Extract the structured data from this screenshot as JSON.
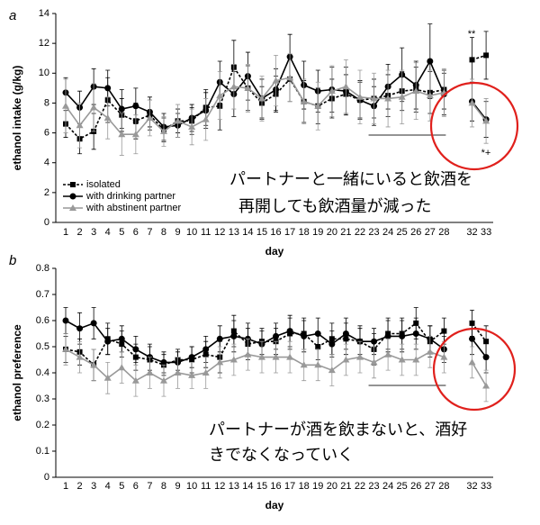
{
  "chart_data": [
    {
      "type": "line",
      "panel_label": "a",
      "ylabel": "ethanol intake (g/kg)",
      "xlabel": "day",
      "categories": [
        "1",
        "2",
        "3",
        "4",
        "5",
        "6",
        "7",
        "8",
        "9",
        "10",
        "11",
        "12",
        "13",
        "14",
        "15",
        "16",
        "17",
        "18",
        "19",
        "20",
        "21",
        "22",
        "23",
        "24",
        "25",
        "26",
        "27",
        "28",
        null,
        "32",
        "33"
      ],
      "ylim": [
        0,
        14
      ],
      "yticks": [
        0,
        2,
        4,
        6,
        8,
        10,
        12,
        14
      ],
      "legend": "lower left",
      "annotations": [
        "パートナーと一緒にいると飲酒を",
        "再開しても飲酒量が減った"
      ],
      "significance": [
        "**",
        "*+"
      ],
      "series": [
        {
          "name": "isolated",
          "color": "#000000",
          "line_style": "dashed",
          "marker": "square",
          "values": [
            6.6,
            5.6,
            6.1,
            8.2,
            7.2,
            6.8,
            7.2,
            6.2,
            6.8,
            6.8,
            7.7,
            7.8,
            10.4,
            9.0,
            8.0,
            8.6,
            9.6,
            8.1,
            7.8,
            8.3,
            8.6,
            8.2,
            8.3,
            8.5,
            8.8,
            8.9,
            8.7,
            8.9,
            null,
            10.9,
            11.2
          ],
          "errors": [
            0.9,
            1.0,
            1.2,
            1.5,
            1.1,
            1.2,
            1.0,
            0.8,
            0.8,
            0.9,
            1.2,
            1.6,
            1.8,
            1.5,
            1.1,
            1.2,
            1.5,
            1.4,
            1.2,
            1.3,
            1.3,
            1.2,
            1.3,
            1.4,
            1.3,
            1.5,
            1.4,
            1.3,
            null,
            1.5,
            1.6
          ]
        },
        {
          "name": "with drinking partner",
          "color": "#000000",
          "line_style": "solid",
          "marker": "circle",
          "values": [
            8.7,
            7.7,
            9.1,
            9.0,
            7.6,
            7.8,
            7.4,
            6.4,
            6.5,
            7.0,
            7.5,
            9.4,
            8.6,
            9.8,
            8.3,
            8.9,
            11.1,
            9.2,
            8.8,
            8.9,
            8.8,
            8.2,
            7.8,
            9.1,
            9.9,
            9.2,
            10.8,
            8.6,
            null,
            8.1,
            6.9
          ],
          "errors": [
            1.0,
            1.1,
            1.2,
            1.2,
            1.3,
            1.2,
            1.0,
            0.9,
            0.8,
            0.9,
            1.2,
            1.4,
            1.5,
            1.6,
            1.3,
            1.4,
            1.5,
            1.6,
            1.4,
            1.5,
            1.6,
            1.3,
            1.3,
            1.5,
            1.8,
            1.6,
            2.5,
            1.4,
            null,
            1.3,
            1.2
          ]
        },
        {
          "name": "with abstinent partner",
          "color": "#999999",
          "line_style": "solid",
          "marker": "triangle",
          "values": [
            7.8,
            6.5,
            7.7,
            7.0,
            5.9,
            5.9,
            7.0,
            6.1,
            6.8,
            6.4,
            6.9,
            8.5,
            9.1,
            9.0,
            8.3,
            9.5,
            9.7,
            8.1,
            7.8,
            8.8,
            9.1,
            8.4,
            8.3,
            8.3,
            8.4,
            8.8,
            8.5,
            8.7,
            null,
            8.0,
            6.8
          ],
          "errors": [
            1.8,
            1.5,
            1.6,
            1.4,
            1.4,
            1.3,
            1.2,
            1.0,
            1.1,
            1.2,
            1.4,
            1.6,
            1.5,
            1.6,
            1.5,
            1.7,
            1.6,
            1.5,
            1.6,
            1.7,
            1.8,
            1.8,
            1.7,
            1.9,
            1.8,
            1.9,
            1.7,
            1.6,
            null,
            1.6,
            1.5
          ]
        }
      ]
    },
    {
      "type": "line",
      "panel_label": "b",
      "ylabel": "ethanol preference",
      "xlabel": "day",
      "categories": [
        "1",
        "2",
        "3",
        "4",
        "5",
        "6",
        "7",
        "8",
        "9",
        "10",
        "11",
        "12",
        "13",
        "14",
        "15",
        "16",
        "17",
        "18",
        "19",
        "20",
        "21",
        "22",
        "23",
        "24",
        "25",
        "26",
        "27",
        "28",
        null,
        "32",
        "33"
      ],
      "ylim": [
        0,
        0.8
      ],
      "yticks": [
        0,
        0.1,
        0.2,
        0.3,
        0.4,
        0.5,
        0.6,
        0.7,
        0.8
      ],
      "annotations": [
        "パートナーが酒を飲まないと、酒好",
        "きでなくなっていく"
      ],
      "series": [
        {
          "color": "#000000",
          "line_style": "dashed",
          "marker": "square",
          "values": [
            0.49,
            0.48,
            0.43,
            0.53,
            0.51,
            0.46,
            0.45,
            0.43,
            0.45,
            0.45,
            0.47,
            0.46,
            0.56,
            0.51,
            0.52,
            0.52,
            0.55,
            0.55,
            0.5,
            0.53,
            0.53,
            0.52,
            0.49,
            0.55,
            0.55,
            0.59,
            0.52,
            0.56,
            null,
            0.59,
            0.52
          ],
          "errors": [
            0.05,
            0.05,
            0.06,
            0.06,
            0.05,
            0.05,
            0.05,
            0.04,
            0.04,
            0.05,
            0.05,
            0.06,
            0.06,
            0.06,
            0.05,
            0.05,
            0.06,
            0.06,
            0.05,
            0.06,
            0.06,
            0.05,
            0.06,
            0.06,
            0.06,
            0.06,
            0.06,
            0.05,
            null,
            0.05,
            0.06
          ]
        },
        {
          "color": "#000000",
          "line_style": "solid",
          "marker": "circle",
          "values": [
            0.6,
            0.57,
            0.59,
            0.52,
            0.53,
            0.49,
            0.46,
            0.44,
            0.44,
            0.46,
            0.49,
            0.53,
            0.54,
            0.53,
            0.51,
            0.54,
            0.56,
            0.54,
            0.55,
            0.51,
            0.55,
            0.52,
            0.52,
            0.54,
            0.54,
            0.55,
            0.53,
            0.49,
            null,
            0.53,
            0.46
          ],
          "errors": [
            0.05,
            0.06,
            0.06,
            0.05,
            0.05,
            0.05,
            0.05,
            0.04,
            0.04,
            0.04,
            0.05,
            0.05,
            0.06,
            0.06,
            0.05,
            0.05,
            0.06,
            0.06,
            0.06,
            0.05,
            0.06,
            0.06,
            0.05,
            0.06,
            0.06,
            0.06,
            0.05,
            0.05,
            null,
            0.06,
            0.06
          ]
        },
        {
          "color": "#999999",
          "line_style": "solid",
          "marker": "triangle",
          "values": [
            0.49,
            0.46,
            0.43,
            0.38,
            0.42,
            0.37,
            0.4,
            0.37,
            0.4,
            0.39,
            0.4,
            0.44,
            0.45,
            0.47,
            0.46,
            0.46,
            0.46,
            0.43,
            0.43,
            0.41,
            0.45,
            0.46,
            0.44,
            0.47,
            0.45,
            0.45,
            0.48,
            0.46,
            null,
            0.44,
            0.35
          ],
          "errors": [
            0.06,
            0.06,
            0.06,
            0.06,
            0.06,
            0.06,
            0.06,
            0.06,
            0.06,
            0.05,
            0.06,
            0.06,
            0.06,
            0.06,
            0.06,
            0.06,
            0.06,
            0.06,
            0.06,
            0.06,
            0.06,
            0.06,
            0.06,
            0.06,
            0.06,
            0.06,
            0.06,
            0.06,
            null,
            0.06,
            0.06
          ]
        }
      ]
    }
  ]
}
